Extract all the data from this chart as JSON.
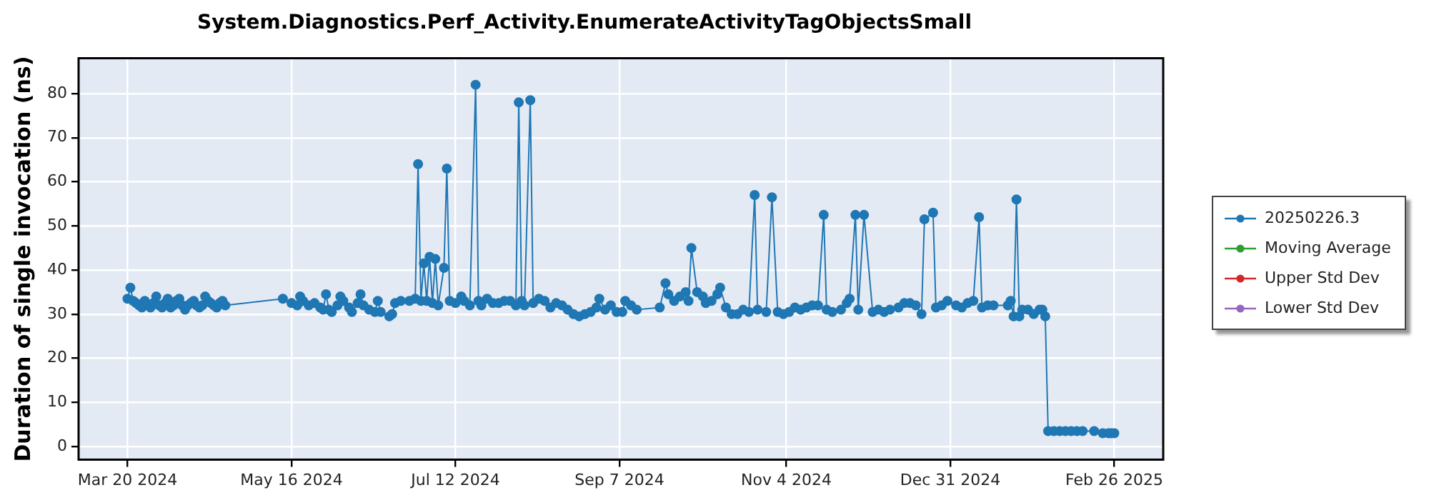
{
  "chart_data": {
    "type": "line",
    "title": "System.Diagnostics.Perf_Activity.EnumerateActivityTagObjectsSmall",
    "ylabel": "Duration of single invocation (ns)",
    "xlim": [
      "2024-03-03",
      "2025-03-15"
    ],
    "xticks": [
      {
        "value": "2024-03-20",
        "label": "Mar 20 2024"
      },
      {
        "value": "2024-05-16",
        "label": "May 16 2024"
      },
      {
        "value": "2024-07-12",
        "label": "Jul 12 2024"
      },
      {
        "value": "2024-09-07",
        "label": "Sep 7 2024"
      },
      {
        "value": "2024-11-04",
        "label": "Nov 4 2024"
      },
      {
        "value": "2024-12-31",
        "label": "Dec 31 2024"
      },
      {
        "value": "2025-02-26",
        "label": "Feb 26 2025"
      }
    ],
    "ylim": [
      -3,
      88
    ],
    "yticks": [
      0,
      10,
      20,
      30,
      40,
      50,
      60,
      70,
      80
    ],
    "grid": true,
    "legend": "right",
    "marker": "circle",
    "line_style": "solid",
    "series": [
      {
        "name": "20250226.3",
        "color": "#1f77b4",
        "x": [
          "2024-03-20",
          "2024-03-21",
          "2024-03-22",
          "2024-03-23",
          "2024-03-24",
          "2024-03-25",
          "2024-03-26",
          "2024-03-27",
          "2024-03-28",
          "2024-03-29",
          "2024-03-30",
          "2024-03-31",
          "2024-04-01",
          "2024-04-02",
          "2024-04-03",
          "2024-04-04",
          "2024-04-05",
          "2024-04-06",
          "2024-04-07",
          "2024-04-08",
          "2024-04-09",
          "2024-04-10",
          "2024-04-11",
          "2024-04-12",
          "2024-04-13",
          "2024-04-14",
          "2024-04-15",
          "2024-04-16",
          "2024-04-17",
          "2024-04-18",
          "2024-04-19",
          "2024-04-20",
          "2024-04-21",
          "2024-04-22",
          "2024-04-23",
          "2024-05-13",
          "2024-05-16",
          "2024-05-18",
          "2024-05-19",
          "2024-05-20",
          "2024-05-22",
          "2024-05-24",
          "2024-05-26",
          "2024-05-27",
          "2024-05-28",
          "2024-05-29",
          "2024-05-30",
          "2024-06-01",
          "2024-06-02",
          "2024-06-03",
          "2024-06-05",
          "2024-06-06",
          "2024-06-08",
          "2024-06-09",
          "2024-06-10",
          "2024-06-12",
          "2024-06-14",
          "2024-06-15",
          "2024-06-16",
          "2024-06-19",
          "2024-06-20",
          "2024-06-21",
          "2024-06-23",
          "2024-06-26",
          "2024-06-28",
          "2024-06-29",
          "2024-06-30",
          "2024-07-01",
          "2024-07-02",
          "2024-07-03",
          "2024-07-04",
          "2024-07-05",
          "2024-07-06",
          "2024-07-08",
          "2024-07-09",
          "2024-07-10",
          "2024-07-12",
          "2024-07-14",
          "2024-07-15",
          "2024-07-17",
          "2024-07-19",
          "2024-07-20",
          "2024-07-21",
          "2024-07-23",
          "2024-07-25",
          "2024-07-27",
          "2024-07-29",
          "2024-07-31",
          "2024-08-02",
          "2024-08-03",
          "2024-08-04",
          "2024-08-05",
          "2024-08-07",
          "2024-08-08",
          "2024-08-10",
          "2024-08-12",
          "2024-08-14",
          "2024-08-16",
          "2024-08-18",
          "2024-08-20",
          "2024-08-22",
          "2024-08-24",
          "2024-08-26",
          "2024-08-28",
          "2024-08-30",
          "2024-08-31",
          "2024-09-02",
          "2024-09-04",
          "2024-09-06",
          "2024-09-08",
          "2024-09-09",
          "2024-09-11",
          "2024-09-13",
          "2024-09-21",
          "2024-09-23",
          "2024-09-24",
          "2024-09-26",
          "2024-09-28",
          "2024-09-30",
          "2024-10-01",
          "2024-10-02",
          "2024-10-04",
          "2024-10-06",
          "2024-10-07",
          "2024-10-09",
          "2024-10-11",
          "2024-10-12",
          "2024-10-14",
          "2024-10-16",
          "2024-10-18",
          "2024-10-20",
          "2024-10-22",
          "2024-10-24",
          "2024-10-25",
          "2024-10-28",
          "2024-10-30",
          "2024-11-01",
          "2024-11-03",
          "2024-11-05",
          "2024-11-07",
          "2024-11-09",
          "2024-11-11",
          "2024-11-13",
          "2024-11-15",
          "2024-11-17",
          "2024-11-18",
          "2024-11-20",
          "2024-11-23",
          "2024-11-25",
          "2024-11-26",
          "2024-11-28",
          "2024-11-29",
          "2024-12-01",
          "2024-12-04",
          "2024-12-06",
          "2024-12-08",
          "2024-12-10",
          "2024-12-13",
          "2024-12-15",
          "2024-12-17",
          "2024-12-19",
          "2024-12-21",
          "2024-12-22",
          "2024-12-25",
          "2024-12-26",
          "2024-12-28",
          "2024-12-30",
          "2025-01-02",
          "2025-01-04",
          "2025-01-06",
          "2025-01-08",
          "2025-01-10",
          "2025-01-11",
          "2025-01-13",
          "2025-01-15",
          "2025-01-20",
          "2025-01-21",
          "2025-01-22",
          "2025-01-23",
          "2025-01-24",
          "2025-01-25",
          "2025-01-27",
          "2025-01-29",
          "2025-01-31",
          "2025-02-01",
          "2025-02-02",
          "2025-02-03",
          "2025-02-05",
          "2025-02-07",
          "2025-02-09",
          "2025-02-11",
          "2025-02-13",
          "2025-02-15",
          "2025-02-19",
          "2025-02-22",
          "2025-02-24",
          "2025-02-25",
          "2025-02-26"
        ],
        "values": [
          33.5,
          36,
          33,
          32.5,
          32,
          31.5,
          33,
          32,
          31.5,
          32.5,
          34,
          32,
          31.5,
          32.5,
          33.5,
          31.5,
          32,
          33,
          33.5,
          32,
          31,
          32,
          32.5,
          33,
          32,
          31.5,
          32,
          34,
          33,
          32.5,
          32,
          31.5,
          32.5,
          33,
          32,
          33.5,
          32.5,
          32,
          34,
          33,
          32,
          32.5,
          31.5,
          31,
          34.5,
          31,
          30.5,
          32,
          34,
          33,
          31.5,
          30.5,
          32.5,
          34.5,
          32,
          31,
          30.5,
          33,
          30.5,
          29.5,
          30,
          32.5,
          33,
          33,
          33.5,
          64,
          33,
          41.5,
          33,
          43,
          32.5,
          42.5,
          32,
          40.5,
          63,
          33,
          32.5,
          34,
          33,
          32,
          82,
          33,
          32,
          33.5,
          32.5,
          32.5,
          33,
          33,
          32,
          78,
          33,
          32,
          78.5,
          32.5,
          33.5,
          33,
          31.5,
          32.5,
          32,
          31,
          30,
          29.5,
          30,
          30.5,
          31.5,
          33.5,
          31,
          32,
          30.5,
          30.5,
          33,
          32,
          31,
          31.5,
          37,
          34.5,
          33,
          34,
          35,
          33,
          45,
          35,
          34,
          32.5,
          33,
          34.5,
          36,
          31.5,
          30,
          30,
          31,
          30.5,
          57,
          31,
          30.5,
          56.5,
          30.5,
          30,
          30.5,
          31.5,
          31,
          31.5,
          32,
          32,
          52.5,
          31,
          30.5,
          31,
          32.5,
          33.5,
          52.5,
          31,
          52.5,
          30.5,
          31,
          30.5,
          31,
          31.5,
          32.5,
          32.5,
          32,
          30,
          51.5,
          53,
          31.5,
          32,
          33,
          32,
          31.5,
          32.5,
          33,
          52,
          31.5,
          32,
          32,
          32,
          33,
          29.5,
          56,
          29.5,
          31,
          31,
          30,
          31,
          31,
          29.5,
          3.5,
          3.5,
          3.5,
          3.5,
          3.5,
          3.5,
          3.5,
          3.5,
          3,
          3,
          3,
          3
        ]
      },
      {
        "name": "Moving Average",
        "color": "#2ca02c"
      },
      {
        "name": "Upper Std Dev",
        "color": "#d62728"
      },
      {
        "name": "Lower Std Dev",
        "color": "#9467bd"
      }
    ]
  }
}
